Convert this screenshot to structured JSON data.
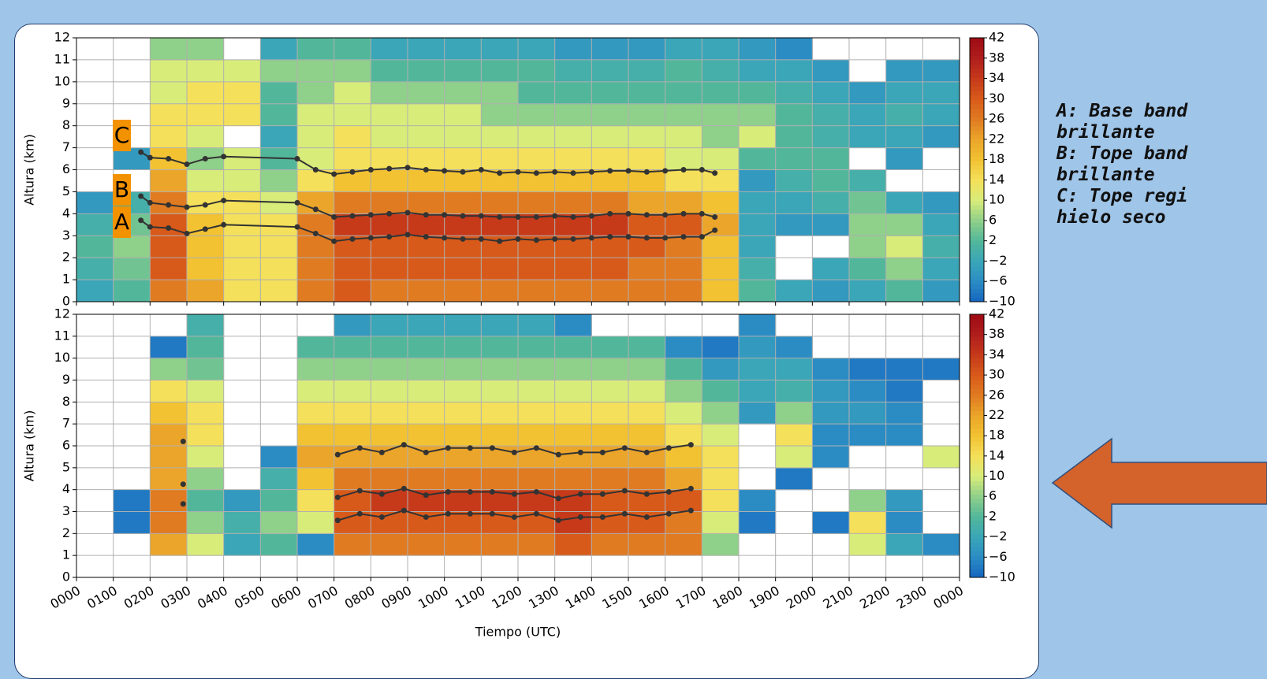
{
  "chart_data": [
    {
      "type": "heatmap",
      "ylabel": "Altura (km)",
      "xlim": [
        0,
        24
      ],
      "ylim": [
        0,
        12
      ],
      "grid": true,
      "xticks": [
        0,
        1,
        2,
        3,
        4,
        5,
        6,
        7,
        8,
        9,
        10,
        11,
        12,
        13,
        14,
        15,
        16,
        17,
        18,
        19,
        20,
        21,
        22,
        23,
        24
      ],
      "yticks": [
        0,
        1,
        2,
        3,
        4,
        5,
        6,
        7,
        8,
        9,
        10,
        11,
        12
      ],
      "clim": [
        -10,
        42
      ],
      "colormap": [
        "#1565c0",
        "#2b8cc4",
        "#3aa6b8",
        "#52b79a",
        "#8fd08a",
        "#d8ec7a",
        "#f4e05a",
        "#f2c232",
        "#eba52a",
        "#e07b22",
        "#d85a1a",
        "#c63a1a",
        "#b01d1d",
        "#9e0b14"
      ],
      "colorbar_ticks": [
        {
          "value": -10,
          "label": "−10"
        },
        {
          "value": -6,
          "label": "−6"
        },
        {
          "value": -2,
          "label": "−2"
        },
        2,
        6,
        10,
        14,
        18,
        22,
        26,
        30,
        34,
        38,
        42
      ],
      "z": [
        [
          -2,
          0,
          2,
          0,
          -4,
          null,
          null,
          null,
          null,
          null,
          null,
          null
        ],
        [
          2,
          4,
          6,
          4,
          0,
          null,
          -4,
          null,
          null,
          null,
          null,
          null
        ],
        [
          26,
          30,
          30,
          30,
          26,
          22,
          18,
          14,
          14,
          10,
          10,
          6
        ],
        [
          22,
          18,
          18,
          18,
          14,
          10,
          6,
          10,
          14,
          14,
          10,
          6
        ],
        [
          14,
          14,
          14,
          14,
          14,
          10,
          10,
          null,
          14,
          14,
          10,
          null
        ],
        [
          14,
          14,
          14,
          14,
          10,
          6,
          2,
          -2,
          2,
          2,
          6,
          -2
        ],
        [
          26,
          26,
          26,
          26,
          22,
          14,
          10,
          10,
          10,
          6,
          6,
          2
        ],
        [
          30,
          30,
          30,
          34,
          26,
          18,
          14,
          14,
          10,
          10,
          6,
          2
        ],
        [
          26,
          30,
          30,
          34,
          26,
          18,
          14,
          10,
          10,
          6,
          2,
          -2
        ],
        [
          26,
          30,
          30,
          34,
          26,
          18,
          14,
          10,
          10,
          6,
          2,
          -2
        ],
        [
          26,
          30,
          30,
          34,
          26,
          18,
          14,
          10,
          10,
          6,
          2,
          -2
        ],
        [
          26,
          30,
          30,
          34,
          26,
          18,
          14,
          10,
          6,
          6,
          2,
          -2
        ],
        [
          26,
          30,
          30,
          34,
          26,
          18,
          14,
          10,
          6,
          2,
          2,
          -2
        ],
        [
          26,
          30,
          30,
          34,
          26,
          18,
          14,
          10,
          6,
          2,
          0,
          -4
        ],
        [
          26,
          30,
          30,
          34,
          26,
          18,
          14,
          10,
          6,
          2,
          0,
          -4
        ],
        [
          26,
          26,
          30,
          30,
          22,
          18,
          14,
          10,
          6,
          2,
          0,
          -4
        ],
        [
          26,
          26,
          26,
          30,
          22,
          14,
          10,
          10,
          6,
          2,
          2,
          -2
        ],
        [
          18,
          18,
          18,
          22,
          18,
          14,
          10,
          6,
          6,
          2,
          0,
          -2
        ],
        [
          2,
          0,
          -2,
          -2,
          -2,
          -4,
          2,
          10,
          6,
          2,
          -2,
          -4
        ],
        [
          -2,
          null,
          null,
          -4,
          -2,
          0,
          2,
          2,
          2,
          0,
          -2,
          -6
        ],
        [
          -4,
          -2,
          null,
          -4,
          0,
          2,
          2,
          0,
          0,
          -2,
          -4,
          null
        ],
        [
          -2,
          2,
          6,
          6,
          4,
          0,
          null,
          -2,
          -2,
          -4,
          null,
          null
        ],
        [
          2,
          6,
          10,
          6,
          -2,
          null,
          -4,
          -2,
          0,
          -2,
          -4,
          null
        ],
        [
          -4,
          -2,
          0,
          -2,
          -4,
          null,
          null,
          -4,
          -2,
          -2,
          -4,
          null
        ]
      ],
      "x": [
        1.75,
        2,
        2.5,
        3,
        3.5,
        4,
        6,
        6.5,
        7,
        7.5,
        8,
        8.5,
        9,
        9.5,
        10,
        10.5,
        11,
        11.5,
        12,
        12.5,
        13,
        13.5,
        14,
        14.5,
        15,
        15.5,
        16,
        16.5,
        17,
        17.35
      ],
      "series": [
        {
          "color": "#333333",
          "values": [
            6.8,
            6.55,
            6.5,
            6.25,
            6.5,
            6.6,
            6.5,
            6.0,
            5.8,
            5.9,
            6.0,
            6.05,
            6.1,
            6.0,
            5.95,
            5.9,
            6.0,
            5.85,
            5.9,
            5.85,
            5.9,
            5.85,
            5.9,
            5.95,
            5.95,
            5.9,
            5.95,
            6.0,
            6.0,
            5.85
          ]
        },
        {
          "color": "#333333",
          "values": [
            4.8,
            4.5,
            4.4,
            4.3,
            4.4,
            4.6,
            4.5,
            4.2,
            3.85,
            3.9,
            3.95,
            4.0,
            4.05,
            3.95,
            3.95,
            3.9,
            3.9,
            3.85,
            3.85,
            3.85,
            3.9,
            3.85,
            3.9,
            4.0,
            4.0,
            3.95,
            3.95,
            4.0,
            4.0,
            3.85
          ]
        },
        {
          "color": "#333333",
          "values": [
            3.7,
            3.4,
            3.35,
            3.1,
            3.3,
            3.5,
            3.4,
            3.1,
            2.75,
            2.85,
            2.9,
            2.95,
            3.05,
            2.95,
            2.9,
            2.85,
            2.85,
            2.75,
            2.85,
            2.8,
            2.85,
            2.85,
            2.9,
            2.95,
            2.95,
            2.9,
            2.9,
            2.95,
            2.95,
            3.25
          ]
        }
      ],
      "annotations": [
        "C",
        "B",
        "A"
      ]
    },
    {
      "type": "heatmap",
      "ylabel": "Altura (km)",
      "xlabel": "Tiempo (UTC)",
      "xlim": [
        0,
        24
      ],
      "ylim": [
        0,
        12
      ],
      "grid": true,
      "xticks": [
        {
          "value": 0,
          "label": "0000"
        },
        {
          "value": 1,
          "label": "0100"
        },
        {
          "value": 2,
          "label": "0200"
        },
        {
          "value": 3,
          "label": "0300"
        },
        {
          "value": 4,
          "label": "0400"
        },
        {
          "value": 5,
          "label": "0500"
        },
        {
          "value": 6,
          "label": "0600"
        },
        {
          "value": 7,
          "label": "0700"
        },
        {
          "value": 8,
          "label": "0800"
        },
        {
          "value": 9,
          "label": "0900"
        },
        {
          "value": 10,
          "label": "1000"
        },
        {
          "value": 11,
          "label": "1100"
        },
        {
          "value": 12,
          "label": "1200"
        },
        {
          "value": 13,
          "label": "1300"
        },
        {
          "value": 14,
          "label": "1400"
        },
        {
          "value": 15,
          "label": "1500"
        },
        {
          "value": 16,
          "label": "1600"
        },
        {
          "value": 17,
          "label": "1700"
        },
        {
          "value": 18,
          "label": "1800"
        },
        {
          "value": 19,
          "label": "1900"
        },
        {
          "value": 20,
          "label": "2000"
        },
        {
          "value": 21,
          "label": "2100"
        },
        {
          "value": 22,
          "label": "2200"
        },
        {
          "value": 23,
          "label": "2300"
        },
        {
          "value": 24,
          "label": "0000"
        }
      ],
      "yticks": [
        0,
        1,
        2,
        3,
        4,
        5,
        6,
        7,
        8,
        9,
        10,
        11,
        12
      ],
      "clim": [
        -10,
        42
      ],
      "colormap": [
        "#1565c0",
        "#2b8cc4",
        "#3aa6b8",
        "#52b79a",
        "#8fd08a",
        "#d8ec7a",
        "#f4e05a",
        "#f2c232",
        "#eba52a",
        "#e07b22",
        "#d85a1a",
        "#c63a1a",
        "#b01d1d",
        "#9e0b14"
      ],
      "colorbar_ticks": [
        {
          "value": -10,
          "label": "−10"
        },
        {
          "value": -6,
          "label": "−6"
        },
        {
          "value": -2,
          "label": "−2"
        },
        2,
        6,
        10,
        14,
        18,
        22,
        26,
        30,
        34,
        38,
        42
      ],
      "z": [
        [
          null,
          null,
          null,
          null,
          null,
          null,
          null,
          null,
          null,
          null,
          null,
          null
        ],
        [
          null,
          null,
          -8,
          -8,
          null,
          null,
          null,
          null,
          null,
          null,
          null,
          null
        ],
        [
          null,
          22,
          26,
          26,
          22,
          22,
          22,
          18,
          14,
          6,
          -8,
          null
        ],
        [
          null,
          10,
          6,
          2,
          6,
          10,
          14,
          14,
          10,
          4,
          2,
          0
        ],
        [
          null,
          -2,
          0,
          -4,
          null,
          null,
          null,
          null,
          null,
          null,
          null,
          null
        ],
        [
          null,
          2,
          6,
          2,
          0,
          -6,
          null,
          null,
          null,
          null,
          null,
          null
        ],
        [
          null,
          -6,
          10,
          14,
          18,
          22,
          18,
          14,
          10,
          6,
          2,
          null
        ],
        [
          null,
          26,
          30,
          30,
          26,
          22,
          18,
          14,
          10,
          6,
          2,
          -4
        ],
        [
          null,
          26,
          30,
          34,
          26,
          22,
          18,
          14,
          10,
          6,
          2,
          -2
        ],
        [
          null,
          26,
          30,
          34,
          26,
          22,
          18,
          14,
          10,
          6,
          2,
          -2
        ],
        [
          null,
          26,
          30,
          34,
          26,
          22,
          18,
          14,
          10,
          6,
          2,
          -2
        ],
        [
          null,
          26,
          30,
          34,
          26,
          22,
          18,
          14,
          10,
          6,
          2,
          -2
        ],
        [
          null,
          26,
          30,
          34,
          26,
          22,
          18,
          14,
          10,
          6,
          2,
          -2
        ],
        [
          null,
          30,
          34,
          34,
          26,
          22,
          18,
          14,
          10,
          6,
          2,
          -6
        ],
        [
          null,
          26,
          30,
          30,
          26,
          22,
          18,
          14,
          10,
          6,
          2,
          null
        ],
        [
          null,
          26,
          30,
          30,
          26,
          22,
          18,
          14,
          10,
          6,
          2,
          null
        ],
        [
          null,
          26,
          26,
          30,
          22,
          18,
          14,
          10,
          6,
          2,
          -6,
          null
        ],
        [
          null,
          6,
          10,
          14,
          14,
          14,
          10,
          6,
          2,
          -4,
          -8,
          null
        ],
        [
          null,
          null,
          -8,
          -6,
          null,
          null,
          null,
          -4,
          -2,
          -2,
          -4,
          -6
        ],
        [
          null,
          null,
          null,
          null,
          -8,
          10,
          14,
          6,
          0,
          -2,
          -6,
          null
        ],
        [
          null,
          null,
          -8,
          null,
          null,
          -6,
          -6,
          -4,
          -4,
          -6,
          null,
          null
        ],
        [
          null,
          10,
          14,
          6,
          null,
          null,
          -6,
          -4,
          -6,
          -8,
          null,
          null
        ],
        [
          null,
          -2,
          -6,
          -4,
          null,
          null,
          -6,
          -6,
          -8,
          -8,
          null,
          null
        ],
        [
          null,
          -6,
          null,
          null,
          null,
          10,
          null,
          null,
          null,
          -8,
          null,
          null
        ]
      ],
      "x": [
        2.9,
        7.1,
        7.7,
        8.3,
        8.9,
        9.5,
        10.1,
        10.7,
        11.3,
        11.9,
        12.5,
        13.1,
        13.7,
        14.3,
        14.9,
        15.5,
        16.1,
        16.7
      ],
      "series": [
        {
          "color": "#333333",
          "values": [
            6.2,
            5.6,
            5.9,
            5.7,
            6.05,
            5.7,
            5.9,
            5.9,
            5.9,
            5.7,
            5.9,
            5.6,
            5.7,
            5.7,
            5.9,
            5.7,
            5.9,
            6.05
          ]
        },
        {
          "color": "#333333",
          "values": [
            4.25,
            3.65,
            3.95,
            3.8,
            4.05,
            3.75,
            3.9,
            3.9,
            3.9,
            3.8,
            3.9,
            3.6,
            3.8,
            3.8,
            3.95,
            3.8,
            3.9,
            4.05
          ]
        },
        {
          "color": "#333333",
          "values": [
            3.35,
            2.6,
            2.9,
            2.75,
            3.05,
            2.75,
            2.9,
            2.9,
            2.9,
            2.75,
            2.9,
            2.6,
            2.75,
            2.75,
            2.9,
            2.75,
            2.9,
            3.05
          ]
        }
      ]
    }
  ],
  "side_notes": [
    "A: Base band",
    "brillante",
    "B: Tope band",
    "brillante",
    "C: Tope regi",
    "hielo seco"
  ]
}
